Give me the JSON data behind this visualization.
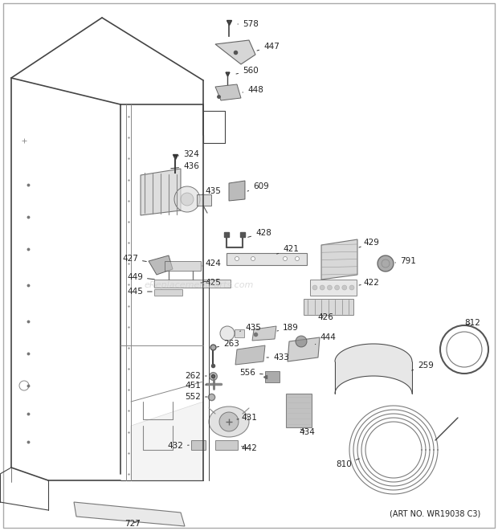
{
  "art_no": "(ART NO. WR19038 C3)",
  "bg_color": "#ffffff",
  "lc": "#444444",
  "tc": "#222222",
  "watermark": "eReplacementParts.com",
  "fig_width": 6.2,
  "fig_height": 6.61,
  "dpi": 100
}
